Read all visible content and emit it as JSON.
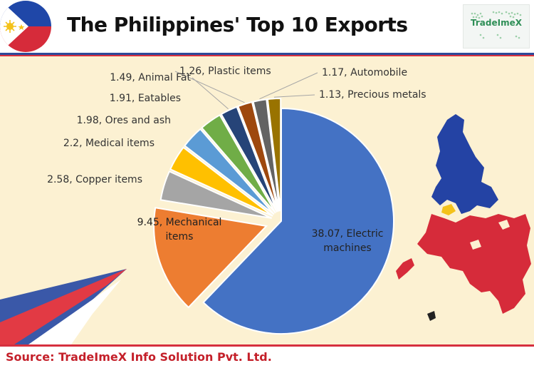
{
  "header": {
    "title": "The Philippines' Top 10 Exports",
    "logo_text": "TradeImeX"
  },
  "footer": {
    "source": "Source: TradeImeX Info Solution Pvt. Ltd."
  },
  "colors": {
    "band_blue": "#2e4a9a",
    "band_red": "#d6303f",
    "background": "#fcf1d2",
    "source_text": "#c4202a"
  },
  "chart_data": {
    "type": "pie",
    "title": "The Philippines' Top 10 Exports",
    "slices": [
      {
        "label": "Electric machines",
        "value": 38.07,
        "color": "#4472c4",
        "label_text": "38.07, Electric machines"
      },
      {
        "label": "Mechanical items",
        "value": 9.45,
        "color": "#ed7d31",
        "label_text": "9.45, Mechanical items"
      },
      {
        "label": "Copper items",
        "value": 2.58,
        "color": "#a5a5a5",
        "label_text": "2.58, Copper items"
      },
      {
        "label": "Medical items",
        "value": 2.2,
        "color": "#ffc000",
        "label_text": "2.2, Medical items"
      },
      {
        "label": "Ores and ash",
        "value": 1.98,
        "color": "#5b9bd5",
        "label_text": "1.98, Ores and ash"
      },
      {
        "label": "Eatables",
        "value": 1.91,
        "color": "#70ad47",
        "label_text": "1.91, Eatables"
      },
      {
        "label": "Animal Fat",
        "value": 1.49,
        "color": "#264478",
        "label_text": "1.49, Animal Fat"
      },
      {
        "label": "Plastic items",
        "value": 1.26,
        "color": "#9e480e",
        "label_text": "1.26, Plastic items"
      },
      {
        "label": "Automobile",
        "value": 1.17,
        "color": "#636363",
        "label_text": "1.17, Automobile"
      },
      {
        "label": "Precious metals",
        "value": 1.13,
        "color": "#997300",
        "label_text": "1.13, Precious metals"
      }
    ]
  }
}
